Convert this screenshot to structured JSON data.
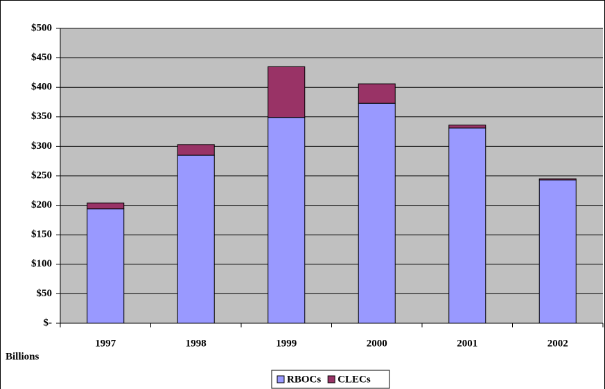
{
  "chart_data": {
    "type": "stacked-bar",
    "y_label": "Billions",
    "categories": [
      "1997",
      "1998",
      "1999",
      "2000",
      "2001",
      "2002"
    ],
    "series": [
      {
        "name": "RBOCs",
        "color": "#9999ff",
        "values": [
          194,
          285,
          349,
          373,
          331,
          243
        ]
      },
      {
        "name": "CLECs",
        "color": "#993366",
        "values": [
          10,
          18,
          86,
          33,
          5,
          2
        ]
      }
    ],
    "ylim": [
      0,
      500
    ],
    "yticks": [
      {
        "value": 0,
        "label": "$-"
      },
      {
        "value": 50,
        "label": "$50"
      },
      {
        "value": 100,
        "label": "$100"
      },
      {
        "value": 150,
        "label": "$150"
      },
      {
        "value": 200,
        "label": "$200"
      },
      {
        "value": 250,
        "label": "$250"
      },
      {
        "value": 300,
        "label": "$300"
      },
      {
        "value": 350,
        "label": "$350"
      },
      {
        "value": 400,
        "label": "$400"
      },
      {
        "value": 450,
        "label": "$450"
      },
      {
        "value": 500,
        "label": "$500"
      }
    ],
    "grid": true,
    "plot_background": "#c0c0c0",
    "legend": "bottom"
  }
}
